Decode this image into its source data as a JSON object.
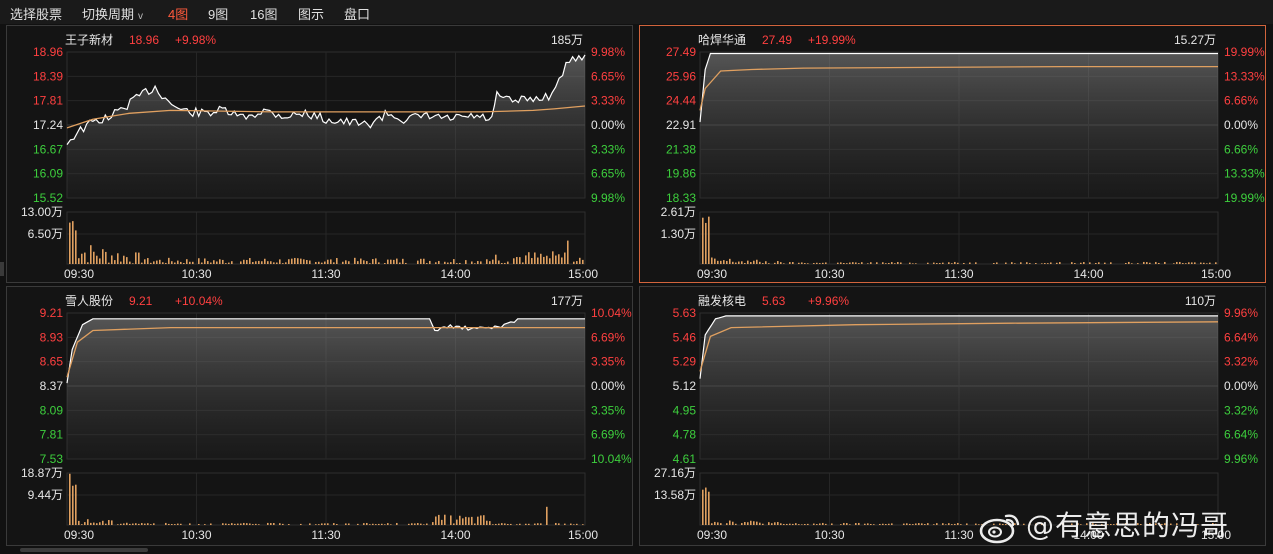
{
  "toolbar": {
    "items": [
      "选择股票",
      "切换周期",
      "4图",
      "9图",
      "16图",
      "图示",
      "盘口"
    ],
    "dropdown_caret": "v",
    "active_index": 2
  },
  "colors": {
    "up": "#ff4040",
    "down": "#3dcf3d",
    "neutral": "#e6e6e6",
    "price_line": "#ffffff",
    "avg_line": "#e0a060",
    "volume": "#e0a060",
    "active_border": "#d2643c"
  },
  "panels": [
    {
      "name": "王子新材",
      "price": "18.96",
      "change": "+9.98%",
      "max_volume_label": "185万",
      "price_ticks": [
        "18.96",
        "18.39",
        "17.81",
        "17.24",
        "16.67",
        "16.09",
        "15.52"
      ],
      "pct_ticks": [
        "9.98%",
        "6.65%",
        "3.33%",
        "0.00%",
        "3.33%",
        "6.65%",
        "9.98%"
      ],
      "vol_ticks": [
        "13.00万",
        "6.50万"
      ],
      "time_ticks": [
        "09:30",
        "10:30",
        "11:30",
        "14:00",
        "15:00"
      ],
      "active": false
    },
    {
      "name": "哈焊华通",
      "price": "27.49",
      "change": "+19.99%",
      "max_volume_label": "15.27万",
      "price_ticks": [
        "27.49",
        "25.96",
        "24.44",
        "22.91",
        "21.38",
        "19.86",
        "18.33"
      ],
      "pct_ticks": [
        "19.99%",
        "13.33%",
        "6.66%",
        "0.00%",
        "6.66%",
        "13.33%",
        "19.99%"
      ],
      "vol_ticks": [
        "2.61万",
        "1.30万"
      ],
      "time_ticks": [
        "09:30",
        "10:30",
        "11:30",
        "14:00",
        "15:00"
      ],
      "active": true
    },
    {
      "name": "雪人股份",
      "price": "9.21",
      "change": "+10.04%",
      "max_volume_label": "177万",
      "price_ticks": [
        "9.21",
        "8.93",
        "8.65",
        "8.37",
        "8.09",
        "7.81",
        "7.53"
      ],
      "pct_ticks": [
        "10.04%",
        "6.69%",
        "3.35%",
        "0.00%",
        "3.35%",
        "6.69%",
        "10.04%"
      ],
      "vol_ticks": [
        "18.87万",
        "9.44万"
      ],
      "time_ticks": [
        "09:30",
        "10:30",
        "11:30",
        "14:00",
        "15:00"
      ],
      "active": false
    },
    {
      "name": "融发核电",
      "price": "5.63",
      "change": "+9.96%",
      "max_volume_label": "110万",
      "price_ticks": [
        "5.63",
        "5.46",
        "5.29",
        "5.12",
        "4.95",
        "4.78",
        "4.61"
      ],
      "pct_ticks": [
        "9.96%",
        "6.64%",
        "3.32%",
        "0.00%",
        "3.32%",
        "6.64%",
        "9.96%"
      ],
      "vol_ticks": [
        "27.16万",
        "13.58万"
      ],
      "time_ticks": [
        "09:30",
        "10:30",
        "11:30",
        "14:00",
        "15:00"
      ],
      "active": false
    }
  ],
  "watermark": {
    "text": "@有意思的冯哥",
    "logo_icon": "weibo-logo-icon"
  }
}
